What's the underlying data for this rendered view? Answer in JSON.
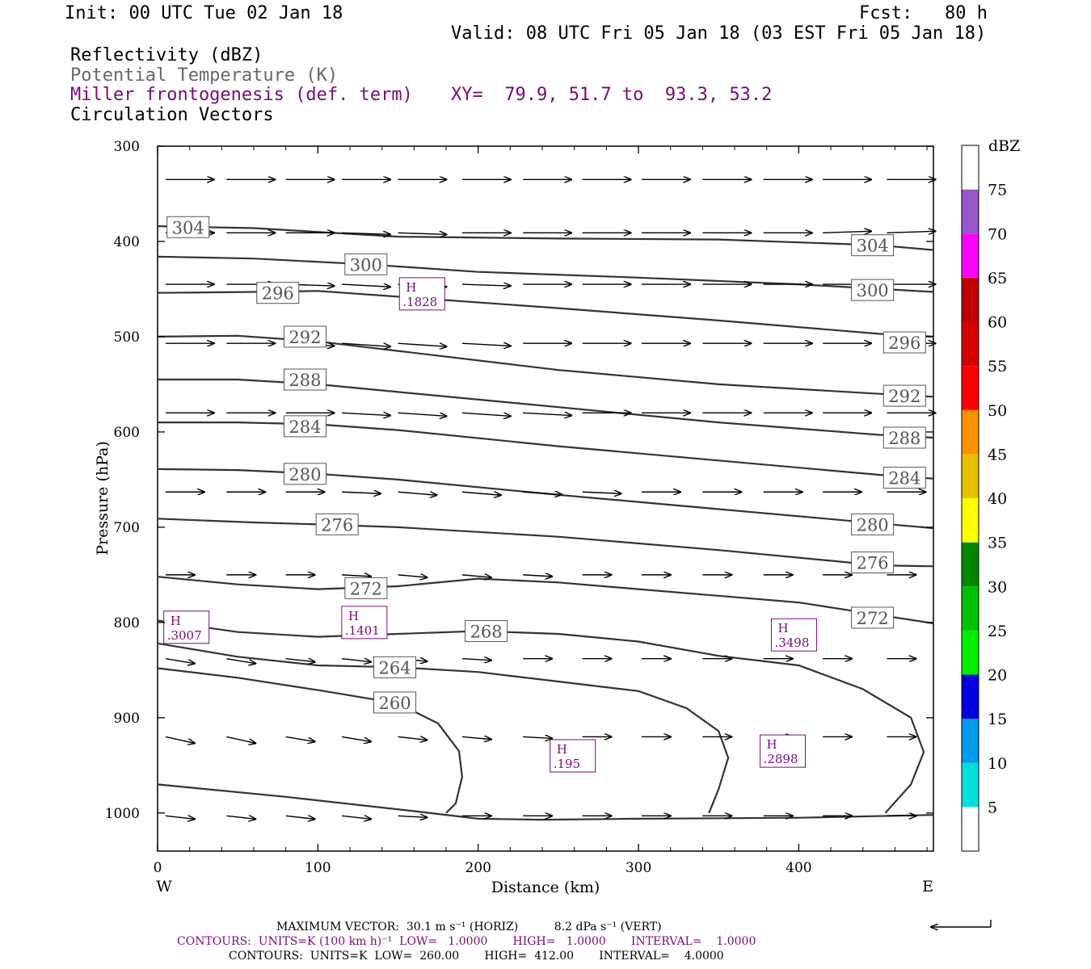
{
  "header": {
    "init": "Init: 00 UTC Tue 02 Jan 18",
    "fcst": "Fcst:   80 h",
    "valid": "Valid: 08 UTC Fri 05 Jan 18 (03 EST Fri 05 Jan 18)",
    "field1": "Reflectivity (dBZ)",
    "field2": "Potential Temperature (K)",
    "field3": "Miller frontogenesis (def. term)",
    "field4": "Circulation Vectors",
    "xy": "XY=  79.9, 51.7 to  93.3, 53.2"
  },
  "colors": {
    "text": "#000000",
    "frontogenesis": "#7a0a7a",
    "potential_temp": "#666666",
    "contour_line": "#333333"
  },
  "chart_data": {
    "type": "line",
    "xlabel": "Distance (km)",
    "ylabel": "Pressure (hPa)",
    "xlim": [
      0,
      484
    ],
    "ylim": [
      300,
      1040
    ],
    "y_inverted": true,
    "x_ticks": [
      "0",
      "100",
      "200",
      "300",
      "400"
    ],
    "y_ticks": [
      "300",
      "400",
      "500",
      "600",
      "700",
      "800",
      "900",
      "1000"
    ],
    "x_end_labels": {
      "west": "W",
      "east": "E"
    },
    "theta_contours": [
      {
        "label": "304",
        "points": [
          [
            0,
            384
          ],
          [
            60,
            386
          ],
          [
            150,
            395
          ],
          [
            250,
            397
          ],
          [
            350,
            398
          ],
          [
            450,
            404
          ],
          [
            484,
            409
          ]
        ],
        "labels_at": [
          [
            19,
            385
          ],
          [
            446,
            404
          ]
        ]
      },
      {
        "label": "300",
        "points": [
          [
            0,
            416
          ],
          [
            60,
            418
          ],
          [
            130,
            424
          ],
          [
            200,
            432
          ],
          [
            300,
            438
          ],
          [
            400,
            445
          ],
          [
            484,
            453
          ]
        ],
        "labels_at": [
          [
            130,
            424
          ],
          [
            446,
            451
          ]
        ]
      },
      {
        "label": "296",
        "points": [
          [
            0,
            454
          ],
          [
            60,
            453
          ],
          [
            100,
            452
          ],
          [
            150,
            458
          ],
          [
            250,
            470
          ],
          [
            350,
            483
          ],
          [
            450,
            497
          ],
          [
            484,
            500
          ]
        ],
        "labels_at": [
          [
            75,
            454
          ],
          [
            466,
            506
          ]
        ]
      },
      {
        "label": "292",
        "points": [
          [
            0,
            500
          ],
          [
            50,
            499
          ],
          [
            100,
            505
          ],
          [
            150,
            515
          ],
          [
            250,
            535
          ],
          [
            350,
            550
          ],
          [
            450,
            560
          ],
          [
            484,
            563
          ]
        ],
        "labels_at": [
          [
            92,
            500
          ],
          [
            466,
            562
          ]
        ]
      },
      {
        "label": "288",
        "points": [
          [
            0,
            545
          ],
          [
            50,
            545
          ],
          [
            100,
            550
          ],
          [
            150,
            558
          ],
          [
            250,
            574
          ],
          [
            350,
            590
          ],
          [
            450,
            603
          ],
          [
            484,
            606
          ]
        ],
        "labels_at": [
          [
            92,
            545
          ],
          [
            466,
            606
          ]
        ]
      },
      {
        "label": "284",
        "points": [
          [
            0,
            590
          ],
          [
            50,
            590
          ],
          [
            100,
            592
          ],
          [
            150,
            598
          ],
          [
            250,
            615
          ],
          [
            350,
            630
          ],
          [
            450,
            645
          ],
          [
            484,
            649
          ]
        ],
        "labels_at": [
          [
            92,
            594
          ],
          [
            466,
            648
          ]
        ]
      },
      {
        "label": "280",
        "points": [
          [
            0,
            639
          ],
          [
            50,
            640
          ],
          [
            100,
            644
          ],
          [
            150,
            650
          ],
          [
            250,
            666
          ],
          [
            350,
            681
          ],
          [
            450,
            696
          ],
          [
            484,
            701
          ]
        ],
        "labels_at": [
          [
            92,
            644
          ],
          [
            446,
            697
          ]
        ]
      },
      {
        "label": "276",
        "points": [
          [
            0,
            691
          ],
          [
            60,
            695
          ],
          [
            100,
            697
          ],
          [
            150,
            700
          ],
          [
            250,
            710
          ],
          [
            350,
            724
          ],
          [
            450,
            740
          ],
          [
            484,
            741
          ]
        ],
        "labels_at": [
          [
            112,
            697
          ],
          [
            446,
            737
          ]
        ]
      },
      {
        "label": "272",
        "points": [
          [
            0,
            752
          ],
          [
            50,
            760
          ],
          [
            100,
            765
          ],
          [
            150,
            762
          ],
          [
            200,
            754
          ],
          [
            250,
            758
          ],
          [
            300,
            765
          ],
          [
            400,
            779
          ],
          [
            484,
            801
          ]
        ],
        "labels_at": [
          [
            130,
            764
          ],
          [
            446,
            795
          ]
        ]
      },
      {
        "label": "268",
        "points": [
          [
            0,
            798
          ],
          [
            50,
            810
          ],
          [
            100,
            815
          ],
          [
            150,
            812
          ],
          [
            200,
            809
          ],
          [
            250,
            812
          ],
          [
            300,
            820
          ],
          [
            350,
            835
          ],
          [
            400,
            845
          ],
          [
            440,
            870
          ],
          [
            470,
            900
          ],
          [
            478,
            936
          ],
          [
            470,
            970
          ],
          [
            454,
            1000
          ]
        ],
        "labels_at": [
          [
            205,
            809
          ]
        ]
      },
      {
        "label": "264",
        "points": [
          [
            0,
            822
          ],
          [
            50,
            836
          ],
          [
            100,
            845
          ],
          [
            150,
            847
          ],
          [
            200,
            852
          ],
          [
            250,
            862
          ],
          [
            300,
            872
          ],
          [
            330,
            890
          ],
          [
            350,
            914
          ],
          [
            356,
            942
          ],
          [
            350,
            975
          ],
          [
            344,
            1000
          ]
        ],
        "labels_at": [
          [
            148,
            847
          ]
        ]
      },
      {
        "label": "260",
        "points": [
          [
            0,
            848
          ],
          [
            50,
            858
          ],
          [
            100,
            871
          ],
          [
            150,
            885
          ],
          [
            175,
            906
          ],
          [
            188,
            935
          ],
          [
            190,
            962
          ],
          [
            186,
            990
          ],
          [
            180,
            1000
          ]
        ],
        "labels_at": [
          [
            148,
            884
          ]
        ]
      },
      {
        "label": "",
        "points": [
          [
            0,
            970
          ],
          [
            80,
            983
          ],
          [
            160,
            998
          ],
          [
            200,
            1006
          ],
          [
            240,
            1007
          ],
          [
            300,
            1006
          ],
          [
            400,
            1005
          ],
          [
            484,
            1002
          ]
        ],
        "labels_at": []
      }
    ],
    "frontogenesis_highs": [
      {
        "label": "H",
        "value": ".1828",
        "x": 165,
        "p": 455
      },
      {
        "label": "H",
        "value": ".3007",
        "x": 18,
        "p": 805
      },
      {
        "label": "H",
        "value": ".1401",
        "x": 129,
        "p": 800
      },
      {
        "label": "H",
        "value": ".3498",
        "x": 397,
        "p": 813
      },
      {
        "label": "H",
        "value": ".195",
        "x": 259,
        "p": 940
      },
      {
        "label": "H",
        "value": ".2898",
        "x": 390,
        "p": 935
      }
    ],
    "vectors": {
      "x": [
        5,
        43,
        80,
        115,
        150,
        190,
        228,
        265,
        302,
        340,
        378,
        415,
        455
      ],
      "levels": [
        {
          "p": 335,
          "u": [
            25,
            25,
            25,
            25,
            25,
            25,
            25,
            25,
            25,
            25,
            25,
            25,
            25
          ],
          "w": [
            0,
            0,
            0,
            0,
            0,
            0,
            0,
            0,
            0,
            0,
            0,
            0,
            0
          ]
        },
        {
          "p": 391,
          "u": [
            25,
            25,
            25,
            25,
            25,
            25,
            25,
            25,
            25,
            25,
            25,
            25,
            25
          ],
          "w": [
            0,
            0,
            0,
            -0.5,
            -0.5,
            0,
            0,
            0,
            0,
            0,
            0,
            0.5,
            0.5
          ]
        },
        {
          "p": 445,
          "u": [
            25,
            25,
            25,
            25,
            25,
            25,
            25,
            25,
            25,
            25,
            25,
            25,
            25
          ],
          "w": [
            0,
            0,
            -0.5,
            -0.8,
            -0.8,
            -0.5,
            0,
            0,
            0,
            0,
            0,
            0,
            0
          ]
        },
        {
          "p": 507,
          "u": [
            25,
            25,
            25,
            25,
            25,
            25,
            25,
            25,
            25,
            25,
            25,
            25,
            25
          ],
          "w": [
            0,
            0,
            -0.8,
            -1.0,
            -1.0,
            -0.8,
            0,
            0,
            0,
            0,
            0,
            0,
            0
          ]
        },
        {
          "p": 580,
          "u": [
            25,
            25,
            25,
            25,
            25,
            25,
            25,
            25,
            25,
            25,
            25,
            25,
            25
          ],
          "w": [
            0,
            0,
            0,
            -0.8,
            -1.0,
            -1.0,
            -0.8,
            0,
            0,
            0,
            0,
            0,
            0
          ]
        },
        {
          "p": 663,
          "u": [
            20,
            20,
            20,
            20,
            20,
            20,
            20,
            20,
            20,
            20,
            20,
            20,
            20
          ],
          "w": [
            0,
            0,
            0,
            -0.5,
            -1.0,
            -1.0,
            -0.8,
            -0.5,
            0,
            0,
            0,
            0,
            0
          ]
        },
        {
          "p": 750,
          "u": [
            15,
            15,
            15,
            15,
            15,
            15,
            15,
            15,
            15,
            15,
            15,
            15,
            15
          ],
          "w": [
            0,
            0,
            0,
            -0.5,
            -0.8,
            -0.8,
            -0.5,
            0,
            0,
            0,
            0,
            0,
            0
          ]
        },
        {
          "p": 838,
          "u": [
            15,
            15,
            15,
            15,
            15,
            15,
            15,
            15,
            15,
            15,
            15,
            15,
            15
          ],
          "w": [
            -1.5,
            -1.5,
            -1.0,
            -1.0,
            -0.8,
            -0.5,
            0,
            0,
            0,
            0,
            0,
            0,
            0
          ]
        },
        {
          "p": 920,
          "u": [
            15,
            15,
            15,
            15,
            15,
            15,
            15,
            15,
            15,
            15,
            15,
            15,
            15
          ],
          "w": [
            -2.0,
            -2.0,
            -1.5,
            -1.5,
            -1.0,
            -0.8,
            -0.5,
            0,
            0,
            0,
            0,
            0,
            0
          ]
        },
        {
          "p": 1003,
          "u": [
            15,
            15,
            15,
            15,
            15,
            15,
            15,
            15,
            15,
            15,
            15,
            15,
            15
          ],
          "w": [
            -1.0,
            -1.0,
            -1.0,
            -1.0,
            -0.5,
            0,
            0,
            0,
            0,
            0,
            0,
            0,
            0
          ]
        }
      ]
    }
  },
  "colorbar": {
    "unit": "dBZ",
    "levels": [
      "5",
      "10",
      "15",
      "20",
      "25",
      "30",
      "35",
      "40",
      "45",
      "50",
      "55",
      "60",
      "65",
      "70",
      "75"
    ],
    "colors": [
      "#ffffff",
      "#00e0e0",
      "#0099ee",
      "#0000dd",
      "#00ee00",
      "#00c000",
      "#008800",
      "#ffff00",
      "#e7c000",
      "#ff9000",
      "#ff0000",
      "#d60000",
      "#c00000",
      "#ff00ff",
      "#9955c9",
      "#ffffff"
    ]
  },
  "footer": {
    "line1": "MAXIMUM VECTOR:  30.1 m s⁻¹ (HORIZ)          8.2 dPa s⁻¹ (VERT)",
    "line2": "CONTOURS:  UNITS=K (100 km h)⁻¹  LOW=   1.0000       HIGH=   1.0000       INTERVAL=    1.0000",
    "line3": "CONTOURS:  UNITS=K  LOW=  260.00       HIGH=  412.00       INTERVAL=    4.0000"
  }
}
